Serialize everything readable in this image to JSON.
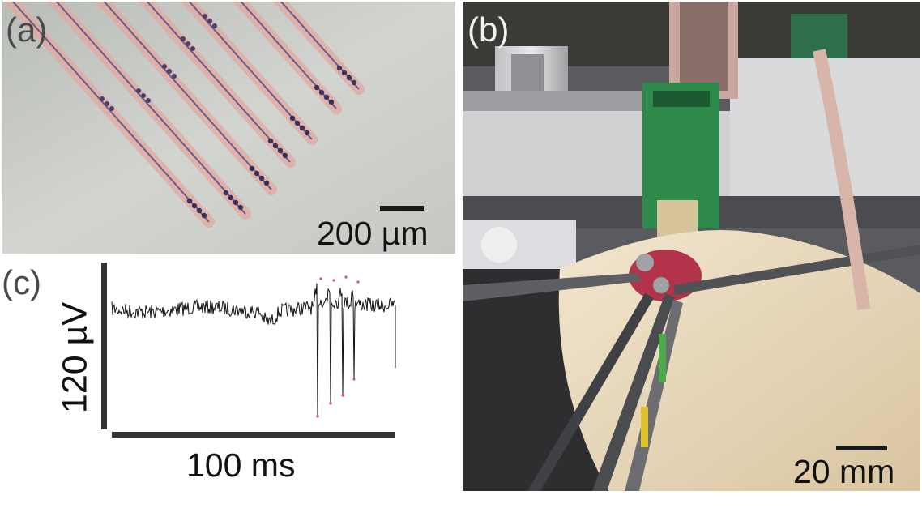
{
  "figure": {
    "panels": [
      {
        "letter": "(a)",
        "scale_bar": "200 µm"
      },
      {
        "letter": "(b)",
        "scale_bar": "20 mm"
      },
      {
        "letter": "(c)",
        "y_scale": "120 µV",
        "x_scale": "100 ms"
      }
    ]
  }
}
